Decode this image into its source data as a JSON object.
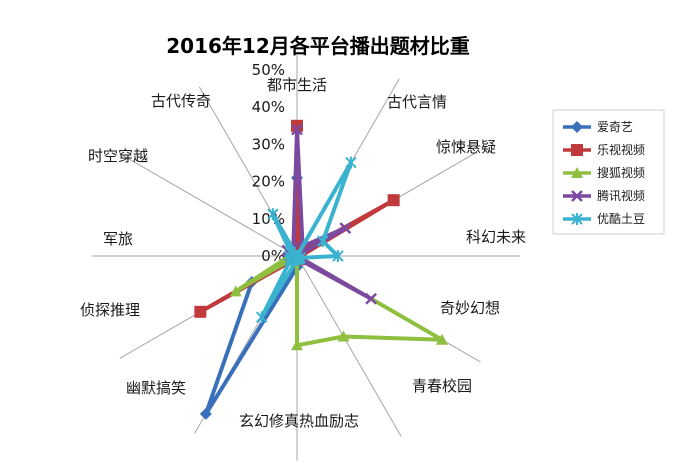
{
  "chart_data": {
    "type": "radar",
    "title": "2016年12月各平台播出题材比重",
    "categories": [
      "都市生活",
      "古代言情",
      "惊悚悬疑",
      "科幻未来",
      "奇妙幻想",
      "青春校园",
      "玄幻修真热血励志",
      "幽默搞笑",
      "侦探推理",
      "军旅",
      "时空穿越",
      "古代传奇"
    ],
    "r_ticks": [
      "0%",
      "10%",
      "20%",
      "30%",
      "40%",
      "50%"
    ],
    "r_range": [
      0,
      0.5
    ],
    "grid": false,
    "legend": "right",
    "series": [
      {
        "name": "爱奇艺",
        "color": "#3a6fba",
        "marker": "diamond",
        "values": [
          0.21,
          0.02,
          0.01,
          0.0,
          0.01,
          0.01,
          0.03,
          0.49,
          0.14,
          0.02,
          0.01,
          0.02
        ]
      },
      {
        "name": "乐视视频",
        "color": "#c0393b",
        "marker": "square",
        "values": [
          0.35,
          0.01,
          0.3,
          0.01,
          0.0,
          0.01,
          0.01,
          0.01,
          0.3,
          0.0,
          0.0,
          0.0
        ]
      },
      {
        "name": "搜狐视频",
        "color": "#8fbf3f",
        "marker": "triangle",
        "values": [
          0.0,
          0.0,
          0.01,
          0.0,
          0.45,
          0.25,
          0.24,
          0.0,
          0.19,
          0.02,
          0.0,
          0.0
        ]
      },
      {
        "name": "腾讯视频",
        "color": "#7b4aa0",
        "marker": "x",
        "values": [
          0.34,
          0.03,
          0.15,
          0.0,
          0.23,
          0.01,
          0.01,
          0.01,
          0.02,
          0.02,
          0.03,
          0.02
        ]
      },
      {
        "name": "优酷土豆",
        "color": "#3ab3d0",
        "marker": "star",
        "values": [
          0.0,
          0.29,
          0.08,
          0.11,
          0.01,
          0.01,
          0.01,
          0.19,
          0.02,
          0.02,
          0.02,
          0.13
        ]
      }
    ]
  }
}
